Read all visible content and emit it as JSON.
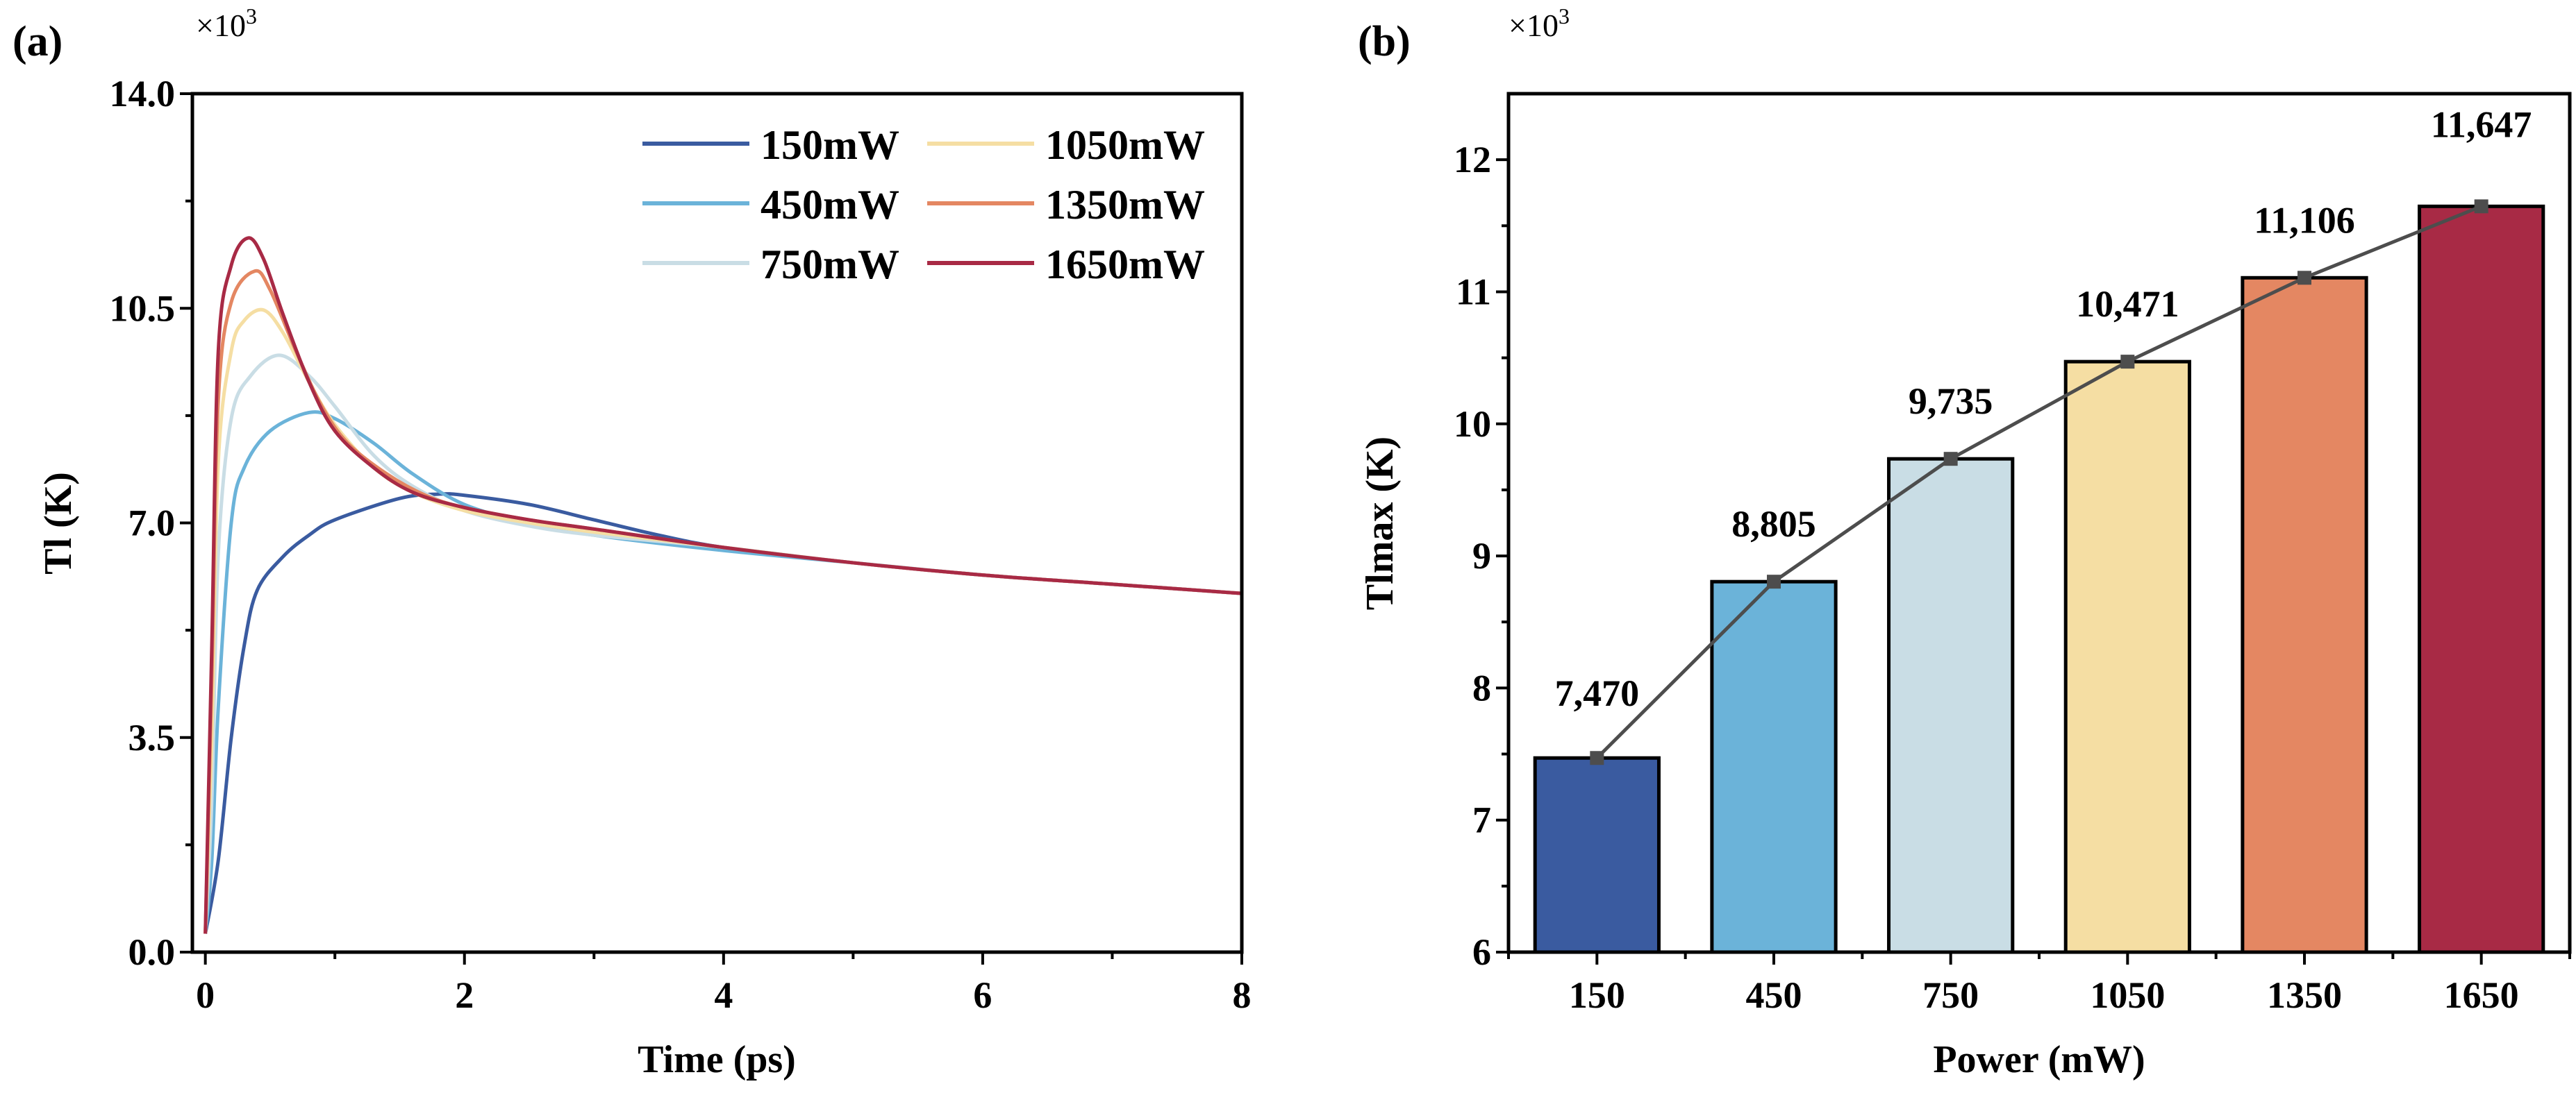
{
  "colors": {
    "150mW": "#3a5ba0",
    "450mW": "#6bb3d9",
    "750mW": "#c9dde5",
    "1050mW": "#f5dea3",
    "1350mW": "#e48762",
    "1650mW": "#a82a45",
    "trend": "#4d4d4d",
    "marker": "#4d4d4d"
  },
  "chart_data": [
    {
      "panel": "(a)",
      "type": "line",
      "title": "",
      "xlabel": "Time (ps)",
      "ylabel": "Tl (K)",
      "y_multiplier": "×10",
      "y_multiplier_exp": "3",
      "xlim": [
        -0.1,
        8
      ],
      "ylim": [
        0,
        14
      ],
      "xticks": [
        "0",
        "2",
        "4",
        "6",
        "8"
      ],
      "yticks": [
        "0.0",
        "3.5",
        "7.0",
        "10.5",
        "14.0"
      ],
      "grid": false,
      "legend_position": "top-right",
      "series": [
        {
          "name": "150mW",
          "x": [
            0,
            0.1,
            0.2,
            0.3,
            0.4,
            0.6,
            0.8,
            1,
            1.5,
            1.8,
            2,
            2.5,
            3,
            3.5,
            4,
            5,
            6,
            7,
            8
          ],
          "y": [
            0.3,
            1.5,
            3.5,
            5.0,
            5.9,
            6.45,
            6.8,
            7.05,
            7.4,
            7.47,
            7.45,
            7.3,
            7.05,
            6.8,
            6.6,
            6.35,
            6.15,
            6.0,
            5.85
          ]
        },
        {
          "name": "450mW",
          "x": [
            0,
            0.05,
            0.1,
            0.2,
            0.3,
            0.5,
            0.8,
            1,
            1.3,
            1.6,
            2,
            2.5,
            3,
            4,
            5,
            6,
            7,
            8
          ],
          "y": [
            0.3,
            1.5,
            4.0,
            7.0,
            7.9,
            8.5,
            8.8,
            8.7,
            8.3,
            7.8,
            7.3,
            7.0,
            6.8,
            6.55,
            6.35,
            6.15,
            6.0,
            5.85
          ]
        },
        {
          "name": "750mW",
          "x": [
            0,
            0.05,
            0.1,
            0.2,
            0.35,
            0.57,
            0.8,
            1,
            1.3,
            1.6,
            2,
            2.5,
            3,
            4,
            5,
            6,
            7,
            8
          ],
          "y": [
            0.3,
            2.5,
            6.5,
            8.7,
            9.4,
            9.735,
            9.4,
            8.9,
            8.1,
            7.6,
            7.2,
            6.95,
            6.8,
            6.6,
            6.35,
            6.15,
            6.0,
            5.85
          ]
        },
        {
          "name": "1050mW",
          "x": [
            0,
            0.05,
            0.1,
            0.2,
            0.3,
            0.45,
            0.6,
            0.8,
            1,
            1.3,
            1.6,
            2,
            2.5,
            3,
            4,
            5,
            6,
            7,
            8
          ],
          "y": [
            0.3,
            3.5,
            8.0,
            9.8,
            10.3,
            10.471,
            10.1,
            9.3,
            8.6,
            7.9,
            7.5,
            7.2,
            7.0,
            6.85,
            6.6,
            6.35,
            6.15,
            6.0,
            5.85
          ]
        },
        {
          "name": "1350mW",
          "x": [
            0,
            0.05,
            0.1,
            0.2,
            0.38,
            0.5,
            0.7,
            0.9,
            1.1,
            1.4,
            1.7,
            2,
            2.5,
            3,
            4,
            5,
            6,
            7,
            8
          ],
          "y": [
            0.3,
            4.5,
            9.0,
            10.6,
            11.106,
            10.8,
            9.8,
            8.9,
            8.3,
            7.8,
            7.45,
            7.25,
            7.05,
            6.9,
            6.6,
            6.35,
            6.15,
            6.0,
            5.85
          ]
        },
        {
          "name": "1650mW",
          "x": [
            0,
            0.05,
            0.1,
            0.2,
            0.33,
            0.45,
            0.6,
            0.8,
            1,
            1.3,
            1.6,
            2,
            2.5,
            3,
            4,
            5,
            6,
            7,
            8
          ],
          "y": [
            0.3,
            5.0,
            9.8,
            11.2,
            11.647,
            11.3,
            10.4,
            9.3,
            8.5,
            7.9,
            7.5,
            7.25,
            7.05,
            6.9,
            6.6,
            6.35,
            6.15,
            6.0,
            5.85
          ]
        }
      ]
    },
    {
      "panel": "(b)",
      "type": "bar",
      "title": "",
      "xlabel": "Power (mW)",
      "ylabel": "Tlmax (K)",
      "y_multiplier": "×10",
      "y_multiplier_exp": "3",
      "ylim": [
        6,
        12.5
      ],
      "yticks": [
        "6",
        "7",
        "8",
        "9",
        "10",
        "11",
        "12"
      ],
      "grid": false,
      "categories": [
        "150",
        "450",
        "750",
        "1050",
        "1350",
        "1650"
      ],
      "values": [
        7.47,
        8.805,
        9.735,
        10.471,
        11.106,
        11.647
      ],
      "data_labels": [
        "7,470",
        "8,805",
        "9,735",
        "10,471",
        "11,106",
        "11,647"
      ],
      "overlay": "line-with-square-markers"
    }
  ]
}
